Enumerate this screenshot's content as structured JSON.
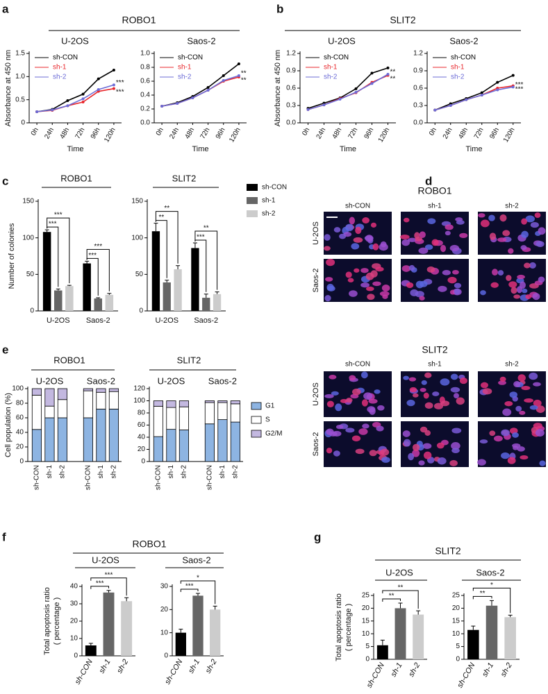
{
  "panels": [
    {
      "label": "a",
      "header": "ROBO1"
    },
    {
      "label": "b",
      "header": "SLIT2"
    },
    {
      "label": "c"
    },
    {
      "label": "d"
    },
    {
      "label": "e"
    },
    {
      "label": "f",
      "header": "ROBO1"
    },
    {
      "label": "g",
      "header": "SLIT2"
    }
  ],
  "micrographs": [
    {
      "title": "ROBO1",
      "columns": [
        "sh-CON",
        "sh-1",
        "sh-2"
      ],
      "rows": [
        "U-2OS",
        "Saos-2"
      ]
    },
    {
      "title": "SLIT2",
      "columns": [
        "sh-CON",
        "sh-1",
        "sh-2"
      ],
      "rows": [
        "U-2OS",
        "Saos-2"
      ]
    }
  ],
  "chart_data": [
    {
      "type": "line",
      "title": "U-2OS",
      "categories": [
        "0h",
        "24h",
        "48h",
        "72h",
        "96h",
        "120h"
      ],
      "series": [
        {
          "name": "sh-CON",
          "color": "#000000",
          "values": [
            0.24,
            0.29,
            0.48,
            0.62,
            0.95,
            1.14
          ]
        },
        {
          "name": "sh-1",
          "color": "#e8262b",
          "values": [
            0.24,
            0.27,
            0.37,
            0.45,
            0.68,
            0.74
          ],
          "significance": "***"
        },
        {
          "name": "sh-2",
          "color": "#6b6bd6",
          "values": [
            0.24,
            0.28,
            0.37,
            0.52,
            0.72,
            0.82
          ],
          "significance": "***"
        }
      ],
      "ylim": [
        0,
        1.5
      ],
      "yticks": [
        0,
        0.5,
        {
          "value": 1,
          "label": "1.0"
        },
        1.5
      ],
      "ylabel": "Absorbance at 450 nm",
      "xlabel": "Time",
      "legend": true
    },
    {
      "type": "line",
      "title": "Saos-2",
      "categories": [
        "0h",
        "24h",
        "48h",
        "72h",
        "96h",
        "120h"
      ],
      "series": [
        {
          "name": "sh-CON",
          "color": "#000000",
          "values": [
            0.24,
            0.29,
            0.38,
            0.51,
            0.68,
            0.85
          ]
        },
        {
          "name": "sh-1",
          "color": "#e8262b",
          "values": [
            0.24,
            0.28,
            0.36,
            0.47,
            0.6,
            0.66
          ],
          "significance": "**"
        },
        {
          "name": "sh-2",
          "color": "#6b6bd6",
          "values": [
            0.24,
            0.28,
            0.36,
            0.47,
            0.61,
            0.68
          ],
          "significance": "**"
        }
      ],
      "ylim": [
        0,
        1
      ],
      "yticks": [
        {
          "value": 0,
          "label": "0.0"
        },
        0.2,
        0.4,
        0.6,
        0.8,
        {
          "value": 1,
          "label": "1.0"
        }
      ],
      "xlabel": "Time",
      "legend": true
    },
    {
      "type": "line",
      "title": "U-2OS",
      "categories": [
        "0h",
        "24h",
        "48h",
        "72h",
        "96h",
        "120h"
      ],
      "series": [
        {
          "name": "sh-CON",
          "color": "#000000",
          "values": [
            0.25,
            0.34,
            0.43,
            0.59,
            0.86,
            0.95
          ]
        },
        {
          "name": "sh-1",
          "color": "#e8262b",
          "values": [
            0.23,
            0.31,
            0.42,
            0.52,
            0.7,
            0.82
          ],
          "significance": "**"
        },
        {
          "name": "sh-2",
          "color": "#6b6bd6",
          "values": [
            0.23,
            0.31,
            0.41,
            0.53,
            0.68,
            0.84
          ],
          "significance": "**"
        }
      ],
      "ylim": [
        0,
        1.2
      ],
      "yticks": [
        {
          "value": 0,
          "label": "0.0"
        },
        0.3,
        0.6,
        0.9,
        1.2
      ],
      "ylabel": "Absorbance at 450 nm",
      "xlabel": "Time",
      "legend": true
    },
    {
      "type": "line",
      "title": "Saos-2",
      "categories": [
        "0h",
        "24h",
        "48h",
        "72h",
        "96h",
        "120h"
      ],
      "series": [
        {
          "name": "sh-CON",
          "color": "#000000",
          "values": [
            0.22,
            0.33,
            0.42,
            0.52,
            0.7,
            0.82
          ]
        },
        {
          "name": "sh-1",
          "color": "#e8262b",
          "values": [
            0.22,
            0.3,
            0.4,
            0.48,
            0.6,
            0.64
          ],
          "significance": "***"
        },
        {
          "name": "sh-2",
          "color": "#6b6bd6",
          "values": [
            0.22,
            0.3,
            0.4,
            0.48,
            0.57,
            0.62
          ],
          "significance": "***"
        }
      ],
      "ylim": [
        0,
        1.2
      ],
      "yticks": [
        {
          "value": 0,
          "label": "0.0"
        },
        0.3,
        0.6,
        0.9,
        1.2
      ],
      "xlabel": "Time",
      "legend": true
    },
    {
      "type": "bar",
      "title": "ROBO1",
      "categories": [
        "U-2OS",
        "Saos-2"
      ],
      "series": [
        {
          "color": "#000000",
          "values": [
            108,
            65
          ],
          "errors": [
            3,
            3
          ]
        },
        {
          "color": "#666666",
          "values": [
            28,
            17
          ],
          "errors": [
            2,
            1
          ],
          "significance": [
            "***",
            "***"
          ]
        },
        {
          "color": "#cccccc",
          "values": [
            34,
            22
          ],
          "errors": [
            1,
            2
          ],
          "significance": [
            "***",
            "***"
          ]
        }
      ],
      "ylim": [
        0,
        150
      ],
      "yticks": [
        0,
        50,
        100,
        150
      ],
      "ylabel": "Number of colonies"
    },
    {
      "type": "bar",
      "title": "SLIT2",
      "categories": [
        "U-2OS",
        "Saos-2"
      ],
      "series": [
        {
          "name": "sh-CON",
          "color": "#000000",
          "values": [
            109,
            86
          ],
          "errors": [
            11,
            7
          ]
        },
        {
          "name": "sh-1",
          "color": "#666666",
          "values": [
            39,
            18
          ],
          "errors": [
            3,
            5
          ],
          "significance": [
            "**",
            "***"
          ]
        },
        {
          "name": "sh-2",
          "color": "#cccccc",
          "values": [
            57,
            23
          ],
          "errors": [
            5,
            3
          ],
          "significance": [
            "**",
            "**"
          ]
        }
      ],
      "ylim": [
        0,
        150
      ],
      "yticks": [
        0,
        50,
        100,
        150
      ],
      "legend": true
    },
    {
      "type": "stacked_bar",
      "title": "ROBO1",
      "groups": [
        "U-2OS",
        "Saos-2"
      ],
      "categories": [
        "sh-CON",
        "sh-1",
        "sh-2",
        "sh-CON",
        "sh-1",
        "sh-2"
      ],
      "series": [
        {
          "color": "#8db4e2",
          "values": [
            44,
            60,
            60,
            60,
            72,
            72
          ]
        },
        {
          "color": "#ffffff",
          "values": [
            47,
            16,
            25,
            37,
            23,
            24
          ]
        },
        {
          "color": "#c3b8e0",
          "values": [
            9,
            24,
            15,
            3,
            5,
            4
          ]
        }
      ],
      "ylim": [
        0,
        100
      ],
      "yticks": [
        0,
        20,
        40,
        60,
        80,
        100
      ],
      "ylabel": "Cell population (%)"
    },
    {
      "type": "stacked_bar",
      "title": "SLIT2",
      "groups": [
        "U-2OS",
        "Saos-2"
      ],
      "categories": [
        "sh-CON",
        "sh-1",
        "sh-2",
        "sh-CON",
        "sh-1",
        "sh-2"
      ],
      "series": [
        {
          "name": "G1",
          "color": "#8db4e2",
          "values": [
            41,
            53,
            52,
            62,
            69,
            65
          ]
        },
        {
          "name": "S",
          "color": "#ffffff",
          "values": [
            50,
            36,
            38,
            35,
            28,
            30
          ]
        },
        {
          "name": "G2/M",
          "color": "#c3b8e0",
          "values": [
            9,
            11,
            10,
            3,
            3,
            5
          ]
        }
      ],
      "ylim": [
        0,
        120
      ],
      "yticks": [
        0,
        20,
        40,
        60,
        80,
        100,
        120
      ],
      "legend": true
    },
    {
      "type": "bar",
      "title": "U-2OS",
      "categories": [
        "sh-CON",
        "sh-1",
        "sh-2"
      ],
      "values": [
        6,
        36.5,
        31.5
      ],
      "errors": [
        1.2,
        1.2,
        2
      ],
      "colors": [
        "#000000",
        "#666666",
        "#cccccc"
      ],
      "significance": [
        null,
        "***",
        "***"
      ],
      "ylim": [
        0,
        40
      ],
      "yticks": [
        0,
        10,
        20,
        30,
        40
      ],
      "ylabel": [
        "Total apoptosis ratio",
        "( percentage )"
      ]
    },
    {
      "type": "bar",
      "title": "Saos-2",
      "categories": [
        "sh-CON",
        "sh-1",
        "sh-2"
      ],
      "values": [
        10,
        26,
        20
      ],
      "errors": [
        1.5,
        1,
        1.5
      ],
      "colors": [
        "#000000",
        "#666666",
        "#cccccc"
      ],
      "significance": [
        null,
        "***",
        "*"
      ],
      "ylim": [
        0,
        30
      ],
      "yticks": [
        0,
        10,
        20,
        30
      ]
    },
    {
      "type": "bar",
      "title": "U-2OS",
      "categories": [
        "sh-CON",
        "sh-1",
        "sh-2"
      ],
      "values": [
        5.5,
        20,
        17.5
      ],
      "errors": [
        2,
        2,
        1.5
      ],
      "colors": [
        "#000000",
        "#666666",
        "#cccccc"
      ],
      "significance": [
        null,
        "**",
        "**"
      ],
      "ylim": [
        0,
        25
      ],
      "yticks": [
        0,
        5,
        10,
        15,
        20,
        25
      ],
      "ylabel": [
        "Total apoptosis ratio",
        "( percentage )"
      ]
    },
    {
      "type": "bar",
      "title": "Saos-2",
      "categories": [
        "sh-CON",
        "sh-1",
        "sh-2"
      ],
      "values": [
        11.5,
        21,
        16.5
      ],
      "errors": [
        1.5,
        2,
        0.8
      ],
      "colors": [
        "#000000",
        "#666666",
        "#cccccc"
      ],
      "significance": [
        null,
        "**",
        "*"
      ],
      "ylim": [
        0,
        25
      ],
      "yticks": [
        0,
        5,
        10,
        15,
        20,
        25
      ]
    }
  ]
}
